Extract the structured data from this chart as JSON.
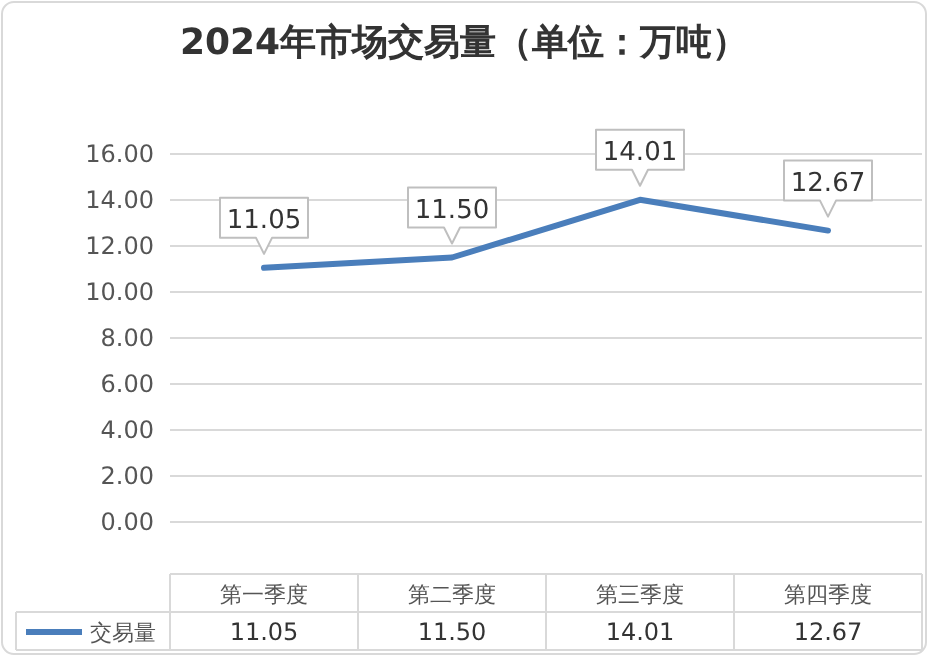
{
  "chart_data": {
    "type": "line",
    "title": "2024年市场交易量（单位：万吨）",
    "categories": [
      "第一季度",
      "第二季度",
      "第三季度",
      "第四季度"
    ],
    "series": [
      {
        "name": "交易量",
        "color": "#4a7ebb",
        "values": [
          11.05,
          11.5,
          14.01,
          12.67
        ],
        "value_labels": [
          "11.05",
          "11.50",
          "14.01",
          "12.67"
        ]
      }
    ],
    "ylim": [
      0,
      16
    ],
    "yticks": [
      {
        "value": 0,
        "label": "0.00"
      },
      {
        "value": 2,
        "label": "2.00"
      },
      {
        "value": 4,
        "label": "4.00"
      },
      {
        "value": 6,
        "label": "6.00"
      },
      {
        "value": 8,
        "label": "8.00"
      },
      {
        "value": 10,
        "label": "10.00"
      },
      {
        "value": 12,
        "label": "12.00"
      },
      {
        "value": 14,
        "label": "14.00"
      },
      {
        "value": 16,
        "label": "16.00"
      }
    ],
    "grid": "y",
    "legend": "bottom left",
    "marker": "none",
    "line_style": "solid"
  }
}
